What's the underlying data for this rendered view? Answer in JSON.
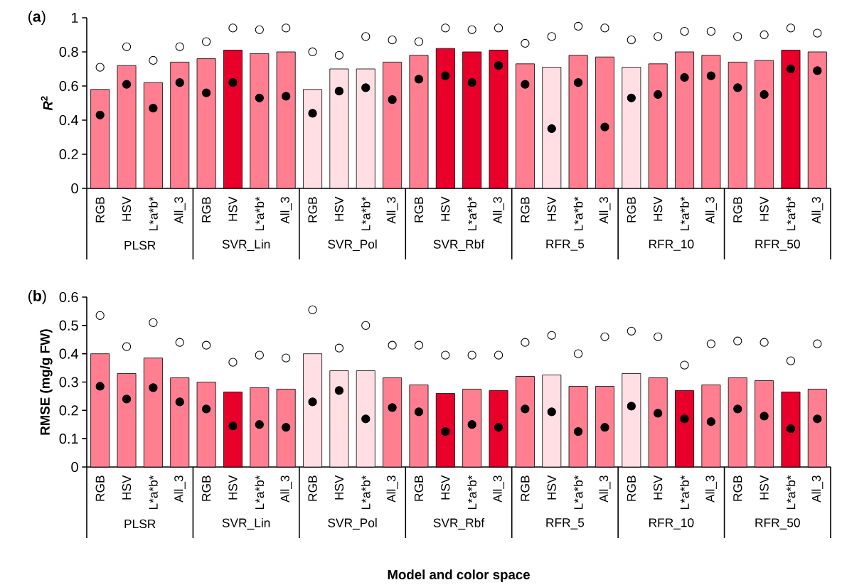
{
  "chart_data": [
    {
      "type": "bar",
      "title": "(**a**)",
      "ylabel": "*R*$^{2}$",
      "marker": "circle",
      "categories": [
        "RGB",
        "HSV",
        "L*a*b*",
        "All_3",
        "RGB",
        "HSV",
        "L*a*b*",
        "All_3",
        "RGB",
        "HSV",
        "L*a*b*",
        "All_3",
        "RGB",
        "HSV",
        "L*a*b*",
        "All_3",
        "RGB",
        "HSV",
        "L*a*b*",
        "All_3",
        "RGB",
        "HSV",
        "L*a*b*",
        "All_3",
        "RGB",
        "HSV",
        "L*a*b*",
        "All_3"
      ],
      "annotations": [
        "PLSR",
        "SVR_Lin",
        "SVR_Pol",
        "SVR_Rbf",
        "RFR_5",
        "RFR_10",
        "RFR_50"
      ],
      "ylim": [
        0,
        1
      ],
      "yticks": [
        0,
        0.2,
        0.4,
        0.6,
        0.8,
        1
      ],
      "series": [
        {
          "type": "bar",
          "values": [
            0.58,
            0.72,
            0.62,
            0.74,
            0.76,
            0.81,
            0.79,
            0.8,
            0.58,
            0.7,
            0.7,
            0.74,
            0.78,
            0.82,
            0.8,
            0.81,
            0.73,
            0.71,
            0.78,
            0.77,
            0.71,
            0.73,
            0.8,
            0.78,
            0.74,
            0.75,
            0.81,
            0.8
          ],
          "colors": [
            "#ff7f91",
            "#ff7f91",
            "#ff7f91",
            "#ff7f91",
            "#ff7f91",
            "#e8002a",
            "#ff7f91",
            "#ff7f91",
            "#ffdfe4",
            "#ffdfe4",
            "#ffdfe4",
            "#ff7f91",
            "#ff7f91",
            "#e8002a",
            "#e8002a",
            "#e8002a",
            "#ff7f91",
            "#ffdfe4",
            "#ff7f91",
            "#ff7f91",
            "#ffdfe4",
            "#ff7f91",
            "#ff7f91",
            "#ff7f91",
            "#ff7f91",
            "#ff7f91",
            "#e8002a",
            "#ff7f91"
          ]
        },
        {
          "type": "scatter",
          "color": "#ffffff",
          "values": [
            0.71,
            0.83,
            0.75,
            0.83,
            0.86,
            0.94,
            0.93,
            0.94,
            0.8,
            0.78,
            0.89,
            0.87,
            0.86,
            0.94,
            0.93,
            0.94,
            0.85,
            0.89,
            0.95,
            0.94,
            0.87,
            0.89,
            0.92,
            0.92,
            0.89,
            0.9,
            0.94,
            0.91
          ]
        },
        {
          "type": "scatter",
          "color": "#000000",
          "values": [
            0.43,
            0.61,
            0.47,
            0.62,
            0.56,
            0.62,
            0.53,
            0.54,
            0.44,
            0.57,
            0.59,
            0.52,
            0.64,
            0.66,
            0.62,
            0.72,
            0.61,
            0.35,
            0.62,
            0.36,
            0.53,
            0.55,
            0.65,
            0.66,
            0.59,
            0.55,
            0.7,
            0.69
          ]
        }
      ]
    },
    {
      "type": "bar",
      "title": "(**b**)",
      "ylabel": "RMSE (mg/g FW)",
      "xlabel": "Model and color space",
      "marker": "circle",
      "categories": [
        "RGB",
        "HSV",
        "L*a*b*",
        "All_3",
        "RGB",
        "HSV",
        "L*a*b*",
        "All_3",
        "RGB",
        "HSV",
        "L*a*b*",
        "All_3",
        "RGB",
        "HSV",
        "L*a*b*",
        "All_3",
        "RGB",
        "HSV",
        "L*a*b*",
        "All_3",
        "RGB",
        "HSV",
        "L*a*b*",
        "All_3",
        "RGB",
        "HSV",
        "L*a*b*",
        "All_3"
      ],
      "annotations": [
        "PLSR",
        "SVR_Lin",
        "SVR_Pol",
        "SVR_Rbf",
        "RFR_5",
        "RFR_10",
        "RFR_50"
      ],
      "ylim": [
        0,
        0.6
      ],
      "yticks": [
        0,
        0.1,
        0.2,
        0.3,
        0.4,
        0.5,
        0.6
      ],
      "series": [
        {
          "type": "bar",
          "values": [
            0.4,
            0.33,
            0.385,
            0.315,
            0.3,
            0.265,
            0.28,
            0.275,
            0.4,
            0.34,
            0.34,
            0.315,
            0.29,
            0.26,
            0.275,
            0.27,
            0.32,
            0.325,
            0.285,
            0.285,
            0.33,
            0.315,
            0.27,
            0.29,
            0.315,
            0.305,
            0.265,
            0.275
          ],
          "colors": [
            "#ff7f91",
            "#ff7f91",
            "#ff7f91",
            "#ff7f91",
            "#ff7f91",
            "#e8002a",
            "#ff7f91",
            "#ff7f91",
            "#ffdfe4",
            "#ffdfe4",
            "#ffdfe4",
            "#ff7f91",
            "#ff7f91",
            "#e8002a",
            "#ff7f91",
            "#e8002a",
            "#ff7f91",
            "#ffdfe4",
            "#ff7f91",
            "#ff7f91",
            "#ffdfe4",
            "#ff7f91",
            "#e8002a",
            "#ff7f91",
            "#ff7f91",
            "#ff7f91",
            "#e8002a",
            "#ff7f91"
          ]
        },
        {
          "type": "scatter",
          "color": "#ffffff",
          "values": [
            0.535,
            0.425,
            0.51,
            0.44,
            0.43,
            0.37,
            0.395,
            0.385,
            0.555,
            0.42,
            0.5,
            0.43,
            0.43,
            0.395,
            0.395,
            0.395,
            0.44,
            0.465,
            0.4,
            0.46,
            0.48,
            0.46,
            0.36,
            0.435,
            0.445,
            0.44,
            0.375,
            0.435
          ]
        },
        {
          "type": "scatter",
          "color": "#000000",
          "values": [
            0.285,
            0.24,
            0.28,
            0.23,
            0.205,
            0.145,
            0.15,
            0.14,
            0.23,
            0.27,
            0.17,
            0.21,
            0.195,
            0.125,
            0.15,
            0.14,
            0.205,
            0.195,
            0.125,
            0.14,
            0.215,
            0.19,
            0.17,
            0.16,
            0.205,
            0.18,
            0.135,
            0.17
          ]
        }
      ]
    }
  ]
}
